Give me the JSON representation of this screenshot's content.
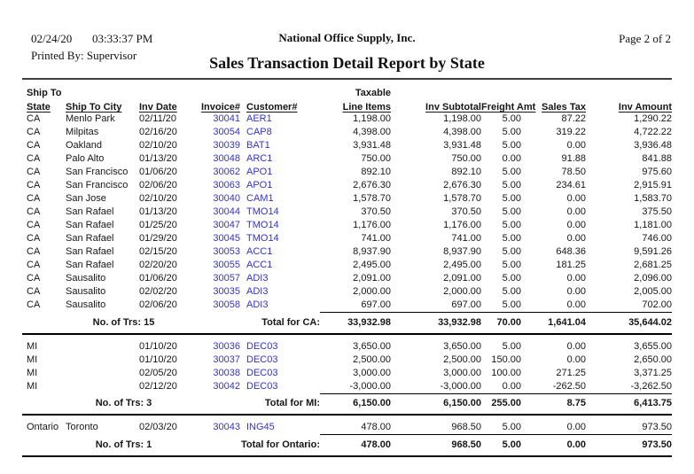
{
  "header": {
    "date": "02/24/20",
    "time": "03:33:37 PM",
    "company": "National Office Supply, Inc.",
    "page": "Page 2 of 2",
    "printed_by": "Printed By: Supervisor",
    "title": "Sales Transaction Detail Report by State"
  },
  "table": {
    "header_top": {
      "ship_to": "Ship To",
      "taxable": "Taxable"
    },
    "columns": [
      "State",
      "Ship To City",
      "Inv Date",
      "Invoice#",
      "Customer#",
      "Line Items",
      "Inv Subtotal",
      "Freight Amt",
      "Sales Tax",
      "Inv Amount"
    ],
    "sections": [
      {
        "state": "CA",
        "rows": [
          {
            "state": "CA",
            "city": "Menlo Park",
            "date": "02/11/20",
            "invoice": "30041",
            "customer": "AER1",
            "line_items": "1,198.00",
            "subtotal": "1,198.00",
            "freight": "5.00",
            "tax": "87.22",
            "amount": "1,290.22"
          },
          {
            "state": "CA",
            "city": "Milpitas",
            "date": "02/16/20",
            "invoice": "30054",
            "customer": "CAP8",
            "line_items": "4,398.00",
            "subtotal": "4,398.00",
            "freight": "5.00",
            "tax": "319.22",
            "amount": "4,722.22"
          },
          {
            "state": "CA",
            "city": "Oakland",
            "date": "02/10/20",
            "invoice": "30039",
            "customer": "BAT1",
            "line_items": "3,931.48",
            "subtotal": "3,931.48",
            "freight": "5.00",
            "tax": "0.00",
            "amount": "3,936.48"
          },
          {
            "state": "CA",
            "city": "Palo Alto",
            "date": "01/13/20",
            "invoice": "30048",
            "customer": "ARC1",
            "line_items": "750.00",
            "subtotal": "750.00",
            "freight": "0.00",
            "tax": "91.88",
            "amount": "841.88"
          },
          {
            "state": "CA",
            "city": "San Francisco",
            "date": "01/06/20",
            "invoice": "30062",
            "customer": "APO1",
            "line_items": "892.10",
            "subtotal": "892.10",
            "freight": "5.00",
            "tax": "78.50",
            "amount": "975.60"
          },
          {
            "state": "CA",
            "city": "San Francisco",
            "date": "02/06/20",
            "invoice": "30063",
            "customer": "APO1",
            "line_items": "2,676.30",
            "subtotal": "2,676.30",
            "freight": "5.00",
            "tax": "234.61",
            "amount": "2,915.91"
          },
          {
            "state": "CA",
            "city": "San Jose",
            "date": "02/10/20",
            "invoice": "30040",
            "customer": "CAM1",
            "line_items": "1,578.70",
            "subtotal": "1,578.70",
            "freight": "5.00",
            "tax": "0.00",
            "amount": "1,583.70"
          },
          {
            "state": "CA",
            "city": "San Rafael",
            "date": "01/13/20",
            "invoice": "30044",
            "customer": "TMO14",
            "line_items": "370.50",
            "subtotal": "370.50",
            "freight": "5.00",
            "tax": "0.00",
            "amount": "375.50"
          },
          {
            "state": "CA",
            "city": "San Rafael",
            "date": "01/25/20",
            "invoice": "30047",
            "customer": "TMO14",
            "line_items": "1,176.00",
            "subtotal": "1,176.00",
            "freight": "5.00",
            "tax": "0.00",
            "amount": "1,181.00"
          },
          {
            "state": "CA",
            "city": "San Rafael",
            "date": "01/29/20",
            "invoice": "30045",
            "customer": "TMO14",
            "line_items": "741.00",
            "subtotal": "741.00",
            "freight": "5.00",
            "tax": "0.00",
            "amount": "746.00"
          },
          {
            "state": "CA",
            "city": "San Rafael",
            "date": "02/15/20",
            "invoice": "30053",
            "customer": "ACC1",
            "line_items": "8,937.90",
            "subtotal": "8,937.90",
            "freight": "5.00",
            "tax": "648.36",
            "amount": "9,591.26"
          },
          {
            "state": "CA",
            "city": "San Rafael",
            "date": "02/20/20",
            "invoice": "30055",
            "customer": "ACC1",
            "line_items": "2,495.00",
            "subtotal": "2,495.00",
            "freight": "5.00",
            "tax": "181.25",
            "amount": "2,681.25"
          },
          {
            "state": "CA",
            "city": "Sausalito",
            "date": "01/06/20",
            "invoice": "30057",
            "customer": "ADI3",
            "line_items": "2,091.00",
            "subtotal": "2,091.00",
            "freight": "5.00",
            "tax": "0.00",
            "amount": "2,096.00"
          },
          {
            "state": "CA",
            "city": "Sausalito",
            "date": "02/02/20",
            "invoice": "30035",
            "customer": "ADI3",
            "line_items": "2,000.00",
            "subtotal": "2,000.00",
            "freight": "5.00",
            "tax": "0.00",
            "amount": "2,005.00"
          },
          {
            "state": "CA",
            "city": "Sausalito",
            "date": "02/06/20",
            "invoice": "30058",
            "customer": "ADI3",
            "line_items": "697.00",
            "subtotal": "697.00",
            "freight": "5.00",
            "tax": "0.00",
            "amount": "702.00"
          }
        ],
        "summary": {
          "trs": "No. of Trs: 15",
          "label": "Total for CA:",
          "values": [
            "33,932.98",
            "33,932.98",
            "70.00",
            "1,641.04",
            "35,644.02"
          ]
        }
      },
      {
        "state": "MI",
        "rows": [
          {
            "state": "MI",
            "city": "",
            "date": "01/10/20",
            "invoice": "30036",
            "customer": "DEC03",
            "line_items": "3,650.00",
            "subtotal": "3,650.00",
            "freight": "5.00",
            "tax": "0.00",
            "amount": "3,655.00"
          },
          {
            "state": "MI",
            "city": "",
            "date": "01/10/20",
            "invoice": "30037",
            "customer": "DEC03",
            "line_items": "2,500.00",
            "subtotal": "2,500.00",
            "freight": "150.00",
            "tax": "0.00",
            "amount": "2,650.00"
          },
          {
            "state": "MI",
            "city": "",
            "date": "02/05/20",
            "invoice": "30038",
            "customer": "DEC03",
            "line_items": "3,000.00",
            "subtotal": "3,000.00",
            "freight": "100.00",
            "tax": "271.25",
            "amount": "3,371.25"
          },
          {
            "state": "MI",
            "city": "",
            "date": "02/12/20",
            "invoice": "30042",
            "customer": "DEC03",
            "line_items": "-3,000.00",
            "subtotal": "-3,000.00",
            "freight": "0.00",
            "tax": "-262.50",
            "amount": "-3,262.50"
          }
        ],
        "summary": {
          "trs": "No. of Trs: 3",
          "label": "Total for MI:",
          "values": [
            "6,150.00",
            "6,150.00",
            "255.00",
            "8.75",
            "6,413.75"
          ]
        }
      },
      {
        "state": "Ontario",
        "rows": [
          {
            "state": "Ontario",
            "city": "Toronto",
            "date": "02/03/20",
            "invoice": "30043",
            "customer": "ING45",
            "line_items": "478.00",
            "subtotal": "968.50",
            "freight": "5.00",
            "tax": "0.00",
            "amount": "973.50"
          }
        ],
        "summary": {
          "trs": "No. of Trs: 1",
          "label": "Total for Ontario:",
          "values": [
            "478.00",
            "968.50",
            "5.00",
            "0.00",
            "973.50"
          ]
        }
      }
    ]
  },
  "colors": {
    "link_blue": "#3333cc",
    "rule_gray": "#3f3f3f",
    "text": "#161616"
  }
}
